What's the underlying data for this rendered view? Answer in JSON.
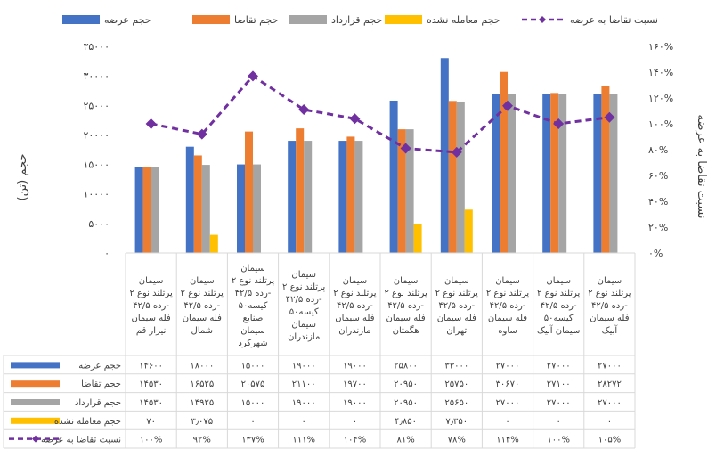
{
  "chart_data": {
    "type": "bar",
    "legend_position": "top",
    "grid": false,
    "ylabel": "حجم (تن)",
    "y2label": "نسبت تقاضا به عرضه",
    "ylim": [
      0,
      35000
    ],
    "y2lim": [
      0,
      160
    ],
    "yticks": [
      "۰",
      "۵۰۰۰",
      "۱۰۰۰۰",
      "۱۵۰۰۰",
      "۲۰۰۰۰",
      "۲۵۰۰۰",
      "۳۰۰۰۰",
      "۳۵۰۰۰"
    ],
    "y2ticks": [
      "۰%",
      "۲۰%",
      "۴۰%",
      "۶۰%",
      "۸۰%",
      "۱۰۰%",
      "۱۲۰%",
      "۱۴۰%",
      "۱۶۰%"
    ],
    "categories": [
      [
        "سیمان",
        "پرتلند نوع ۲",
        "رده ۴۲/۵-",
        "فله سیمان",
        "نیزار قم"
      ],
      [
        "سیمان",
        "پرتلند نوع ۲",
        "رده ۴۲/۵-",
        "فله سیمان",
        "شمال"
      ],
      [
        "سیمان",
        "پرتلند نوع ۲",
        "رده ۴۲/۵-",
        "کیسه۵۰",
        "صنایع",
        "سیمان",
        "شهرکرد"
      ],
      [
        "سیمان",
        "پرتلند نوع ۲",
        "رده ۴۲/۵-",
        "کیسه۵۰",
        "سیمان",
        "مازندران"
      ],
      [
        "سیمان",
        "پرتلند نوع ۲",
        "رده ۴۲/۵-",
        "فله سیمان",
        "مازندران"
      ],
      [
        "سیمان",
        "پرتلند نوع ۲",
        "رده ۴۲/۵-",
        "فله سیمان",
        "هگمتان"
      ],
      [
        "سیمان",
        "پرتلند نوع ۲",
        "رده ۴۲/۵-",
        "فله سیمان",
        "تهران"
      ],
      [
        "سیمان",
        "پرتلند نوع ۲",
        "رده ۴۲/۵-",
        "فله سیمان",
        "ساوه"
      ],
      [
        "سیمان",
        "پرتلند نوع ۲",
        "رده ۴۲/۵-",
        "کیسه۵۰",
        "سیمان آبیک"
      ],
      [
        "سیمان",
        "پرتلند نوع ۲",
        "رده ۴۲/۵-",
        "فله سیمان",
        "آبیک"
      ]
    ],
    "series": [
      {
        "name": "حجم عرضه",
        "color": "#4472C4",
        "kind": "bar",
        "values": [
          14600,
          18000,
          15000,
          19000,
          19000,
          25800,
          33000,
          27000,
          27000,
          27000
        ],
        "labels": [
          "۱۴۶۰۰",
          "۱۸۰۰۰",
          "۱۵۰۰۰",
          "۱۹۰۰۰",
          "۱۹۰۰۰",
          "۲۵۸۰۰",
          "۳۳۰۰۰",
          "۲۷۰۰۰",
          "۲۷۰۰۰",
          "۲۷۰۰۰"
        ]
      },
      {
        "name": "حجم تقاضا",
        "color": "#ED7D31",
        "kind": "bar",
        "values": [
          14530,
          16525,
          20575,
          21100,
          19700,
          20950,
          25750,
          30670,
          27100,
          28272
        ],
        "labels": [
          "۱۴۵۳۰",
          "۱۶۵۲۵",
          "۲۰۵۷۵",
          "۲۱۱۰۰",
          "۱۹۷۰۰",
          "۲۰۹۵۰",
          "۲۵۷۵۰",
          "۳۰۶۷۰",
          "۲۷۱۰۰",
          "۲۸۲۷۲"
        ]
      },
      {
        "name": "حجم قرارداد",
        "color": "#A5A5A5",
        "kind": "bar",
        "values": [
          14530,
          14925,
          15000,
          19000,
          19000,
          20950,
          25650,
          27000,
          27000,
          27000
        ],
        "labels": [
          "۱۴۵۳۰",
          "۱۴۹۲۵",
          "۱۵۰۰۰",
          "۱۹۰۰۰",
          "۱۹۰۰۰",
          "۲۰۹۵۰",
          "۲۵۶۵۰",
          "۲۷۰۰۰",
          "۲۷۰۰۰",
          "۲۷۰۰۰"
        ]
      },
      {
        "name": "حجم معامله نشده",
        "color": "#FFC000",
        "kind": "bar",
        "values": [
          70,
          3075,
          0,
          0,
          0,
          4850,
          7350,
          0,
          0,
          0
        ],
        "labels": [
          "۷۰",
          "۳٫۰۷۵",
          "۰",
          "۰",
          "۰",
          "۴٫۸۵۰",
          "۷٫۳۵۰",
          "۰",
          "۰",
          "۰"
        ]
      },
      {
        "name": "نسبت تقاضا به عرضه",
        "color": "#7030A0",
        "kind": "line",
        "values": [
          100,
          92,
          137,
          111,
          104,
          81,
          78,
          114,
          100,
          105
        ],
        "labels": [
          "۱۰۰%",
          "۹۲%",
          "۱۳۷%",
          "۱۱۱%",
          "۱۰۴%",
          "۸۱%",
          "۷۸%",
          "۱۱۴%",
          "۱۰۰%",
          "۱۰۵%"
        ]
      }
    ]
  }
}
